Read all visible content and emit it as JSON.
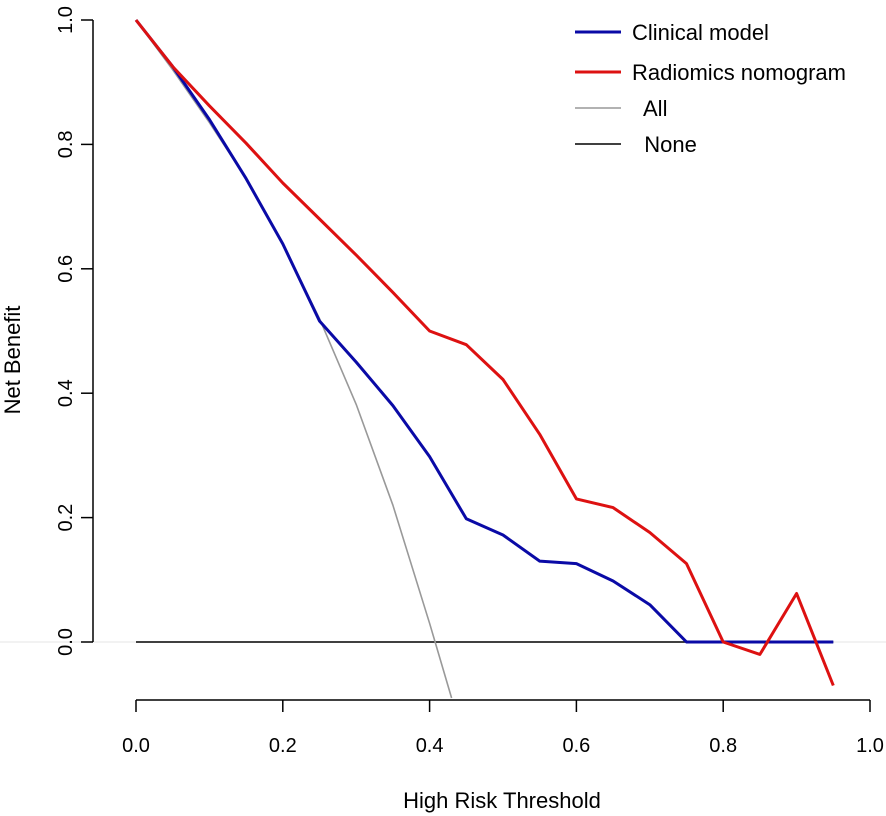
{
  "chart_data": {
    "type": "line",
    "title": "",
    "xlabel": "High Risk Threshold",
    "ylabel": "Net Benefit",
    "xlim": [
      0.0,
      1.0
    ],
    "ylim": [
      -0.1,
      1.0
    ],
    "xticks": [
      "0.0",
      "0.2",
      "0.4",
      "0.6",
      "0.8",
      "1.0"
    ],
    "yticks": [
      "0.0",
      "0.2",
      "0.4",
      "0.6",
      "0.8",
      "1.0"
    ],
    "legend_position": "top-right",
    "series": [
      {
        "name": "Clinical model",
        "legend_label": "Clinical model",
        "color": "#0a0aa6",
        "x": [
          0.0,
          0.05,
          0.1,
          0.15,
          0.2,
          0.25,
          0.3,
          0.35,
          0.4,
          0.45,
          0.5,
          0.55,
          0.6,
          0.65,
          0.7,
          0.75,
          0.8,
          0.85,
          0.9,
          0.95
        ],
        "y": [
          1.0,
          0.925,
          0.84,
          0.745,
          0.64,
          0.516,
          0.45,
          0.38,
          0.298,
          0.198,
          0.172,
          0.13,
          0.126,
          0.098,
          0.06,
          0.0,
          0.0,
          0.0,
          0.0,
          0.0
        ]
      },
      {
        "name": "Radiomics nomogram",
        "legend_label": "Radiomics nomogram",
        "color": "#dd1111",
        "x": [
          0.0,
          0.05,
          0.1,
          0.15,
          0.2,
          0.25,
          0.3,
          0.35,
          0.4,
          0.45,
          0.5,
          0.55,
          0.6,
          0.65,
          0.7,
          0.75,
          0.8,
          0.85,
          0.9,
          0.95
        ],
        "y": [
          1.0,
          0.925,
          0.862,
          0.802,
          0.738,
          0.68,
          0.622,
          0.562,
          0.5,
          0.478,
          0.422,
          0.334,
          0.23,
          0.216,
          0.176,
          0.126,
          0.0,
          -0.02,
          0.078,
          -0.07
        ]
      },
      {
        "name": "All",
        "legend_label": "  All",
        "color": "#999999",
        "x": [
          0.0,
          0.05,
          0.1,
          0.15,
          0.2,
          0.25,
          0.3,
          0.35,
          0.4,
          0.43
        ],
        "y": [
          1.0,
          0.92,
          0.835,
          0.745,
          0.64,
          0.52,
          0.382,
          0.22,
          0.03,
          -0.09
        ]
      },
      {
        "name": "None",
        "legend_label": "  None",
        "color": "#000000",
        "x": [
          0.0,
          0.95
        ],
        "y": [
          0.0,
          0.0
        ]
      }
    ]
  }
}
